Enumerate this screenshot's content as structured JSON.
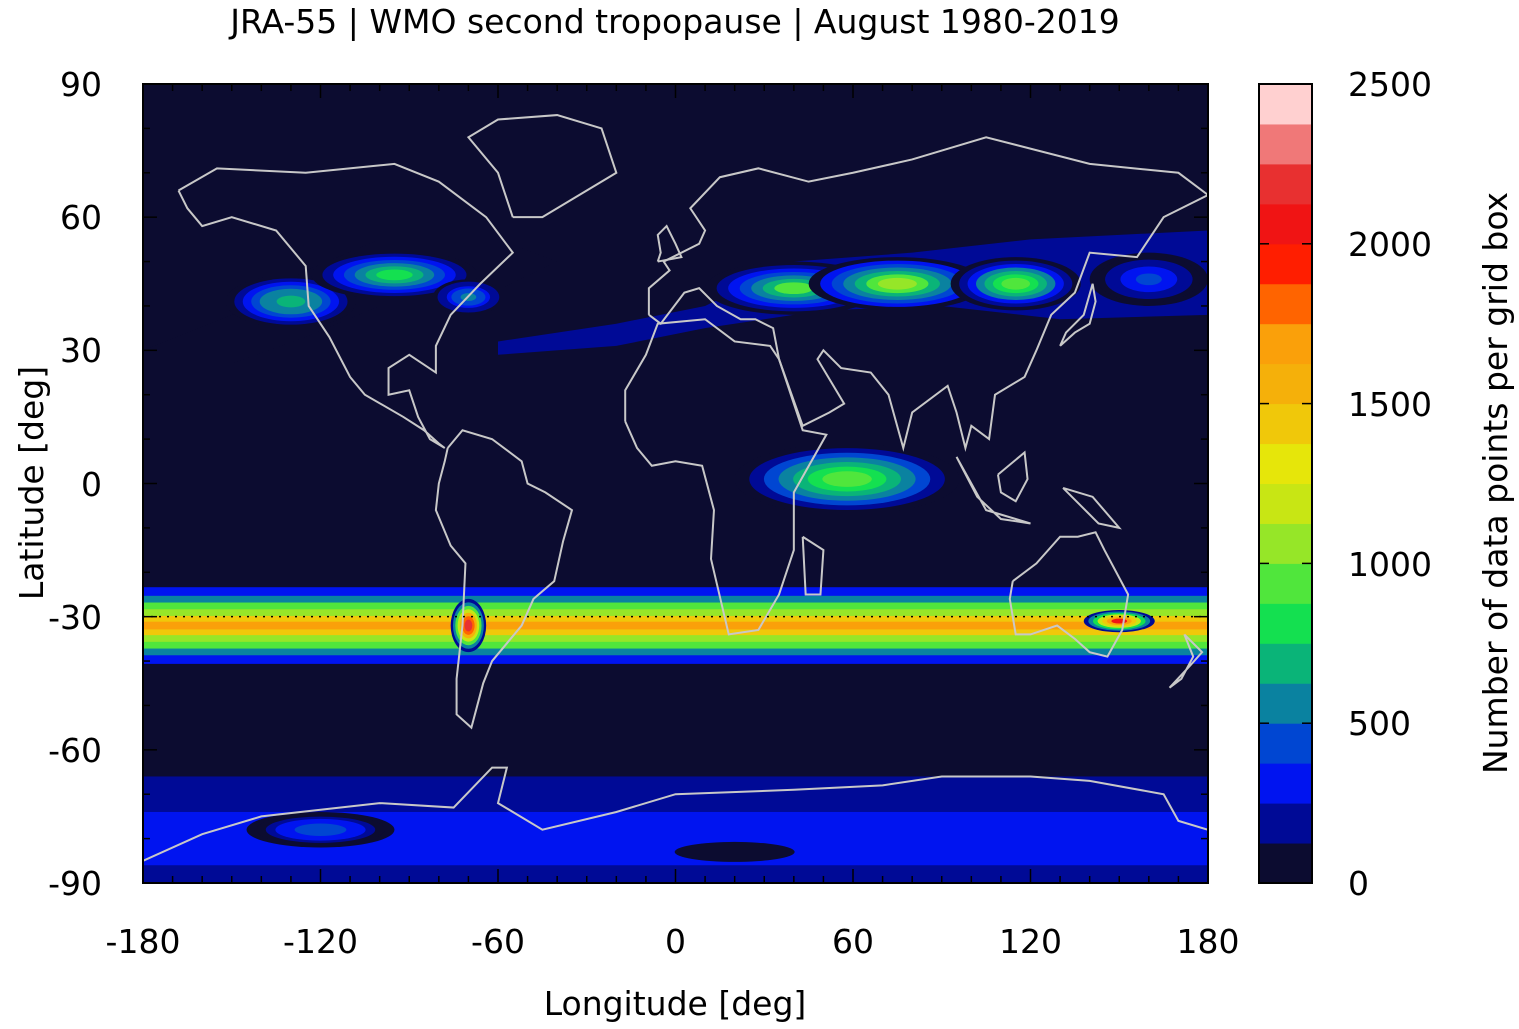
{
  "title": "JRA-55 | WMO second tropopause | August 1980-2019",
  "axes": {
    "xlabel": "Longitude [deg]",
    "ylabel": "Latitude [deg]",
    "xticks": [
      "-180",
      "-120",
      "-60",
      "0",
      "60",
      "120",
      "180"
    ],
    "yticks": [
      "90",
      "60",
      "30",
      "0",
      "-30",
      "-60",
      "-90"
    ],
    "xlim": [
      -180,
      180
    ],
    "ylim": [
      -90,
      90
    ]
  },
  "colorbar": {
    "label": "Number of data points per grid box",
    "ticks": [
      "2500",
      "2000",
      "1500",
      "1000",
      "500",
      "0"
    ],
    "range": [
      0,
      2500
    ],
    "levels": [
      "#0c0c30",
      "#000a96",
      "#0014f0",
      "#0046d2",
      "#0a82a0",
      "#0ab478",
      "#14e050",
      "#50e63c",
      "#96e628",
      "#c8e614",
      "#e6e60a",
      "#f0c80a",
      "#f5b00a",
      "#faa00a",
      "#ff6400",
      "#ff1e00",
      "#f01414",
      "#e83030",
      "#f07878",
      "#ffd0d0"
    ]
  },
  "chart_data": {
    "type": "heatmap",
    "title": "JRA-55 | WMO second tropopause | August 1980-2019",
    "xlabel": "Longitude [deg]",
    "ylabel": "Latitude [deg]",
    "xlim": [
      -180,
      180
    ],
    "ylim": [
      -90,
      90
    ],
    "colorbar_label": "Number of data points per grid box",
    "colorbar_range": [
      0,
      2500
    ],
    "reference_line_latitude": -30,
    "features": [
      {
        "name": "southern subtropical band",
        "lat_center": -32,
        "lat_halfwidth": 8,
        "lon_range": [
          -180,
          180
        ],
        "peak_value": 1700
      },
      {
        "name": "Andes maximum",
        "lon": -70,
        "lat": -32,
        "peak_value": 2200
      },
      {
        "name": "Australia maximum",
        "lon": 150,
        "lat": -31,
        "peak_value": 2050
      },
      {
        "name": "North America band",
        "lon_range": [
          -180,
          -40
        ],
        "lat_range": [
          28,
          55
        ],
        "peak_value": 900
      },
      {
        "name": "Eurasia band",
        "lon_range": [
          -60,
          180
        ],
        "lat_range": [
          35,
          55
        ],
        "peak_value": 1100
      },
      {
        "name": "equatorial Indian Ocean",
        "lon_range": [
          20,
          95
        ],
        "lat_range": [
          -10,
          12
        ],
        "peak_value": 1000
      },
      {
        "name": "Antarctic region",
        "lon_range": [
          -180,
          180
        ],
        "lat_range": [
          -90,
          -65
        ],
        "peak_value": 500
      }
    ]
  }
}
